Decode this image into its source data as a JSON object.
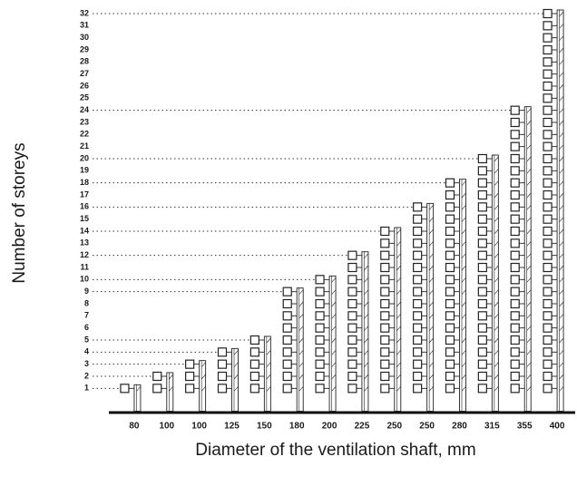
{
  "chart_data": {
    "type": "bar",
    "xlabel": "Diameter of the ventilation shaft, mm",
    "ylabel": "Number of storeys",
    "categories": [
      "80",
      "100",
      "100",
      "125",
      "150",
      "180",
      "200",
      "225",
      "250",
      "250",
      "280",
      "315",
      "355",
      "400"
    ],
    "values": [
      1,
      2,
      3,
      4,
      5,
      9,
      10,
      12,
      14,
      16,
      18,
      20,
      24,
      32
    ],
    "color": "#ffffff",
    "ylim": [
      -1,
      32
    ],
    "yticks": [
      1,
      2,
      3,
      4,
      5,
      6,
      7,
      8,
      9,
      10,
      11,
      12,
      13,
      14,
      15,
      16,
      17,
      18,
      19,
      20,
      21,
      22,
      23,
      24,
      25,
      26,
      27,
      28,
      29,
      30,
      31,
      32
    ],
    "grid": false
  }
}
